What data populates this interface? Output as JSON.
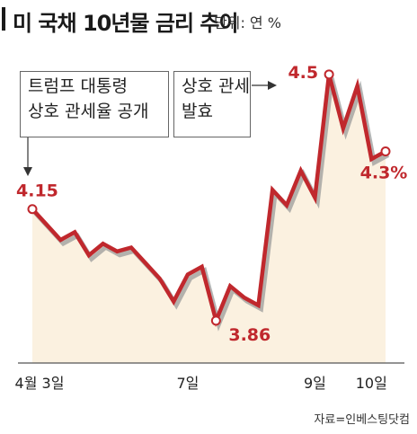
{
  "header": {
    "title": "미 국채 10년물 금리 추이",
    "unit": "단위: 연 %"
  },
  "annotations": [
    {
      "line1": "트럼프 대통령",
      "line2": "상호 관세율 공개"
    },
    {
      "line1": "상호 관세",
      "line2": "발효"
    }
  ],
  "source": "자료=인베스팅닷컴",
  "colors": {
    "line": "#c0282d",
    "area": "#fbf1e0",
    "shadow": "#9b9b9b"
  },
  "chart_data": {
    "type": "area",
    "x_tick_labels": [
      {
        "index": 0,
        "label": "4월 3일"
      },
      {
        "index": 11,
        "label": "7일"
      },
      {
        "index": 20,
        "label": "9일"
      },
      {
        "index": 24,
        "label": "10일"
      }
    ],
    "y": [
      4.15,
      4.11,
      4.07,
      4.09,
      4.03,
      4.06,
      4.04,
      4.05,
      4.01,
      3.97,
      3.91,
      3.98,
      4.0,
      3.86,
      3.95,
      3.92,
      3.9,
      4.2,
      4.16,
      4.25,
      4.18,
      4.5,
      4.36,
      4.47,
      4.28,
      4.3
    ],
    "ylim": [
      3.75,
      4.6
    ],
    "data_labels": [
      {
        "index": 0,
        "label": "4.15"
      },
      {
        "index": 13,
        "label": "3.86"
      },
      {
        "index": 21,
        "label": "4.5"
      },
      {
        "index": 25,
        "label": "4.3%"
      }
    ],
    "marked_points": [
      0,
      13,
      21,
      25
    ],
    "grid": false,
    "legend": "none"
  }
}
